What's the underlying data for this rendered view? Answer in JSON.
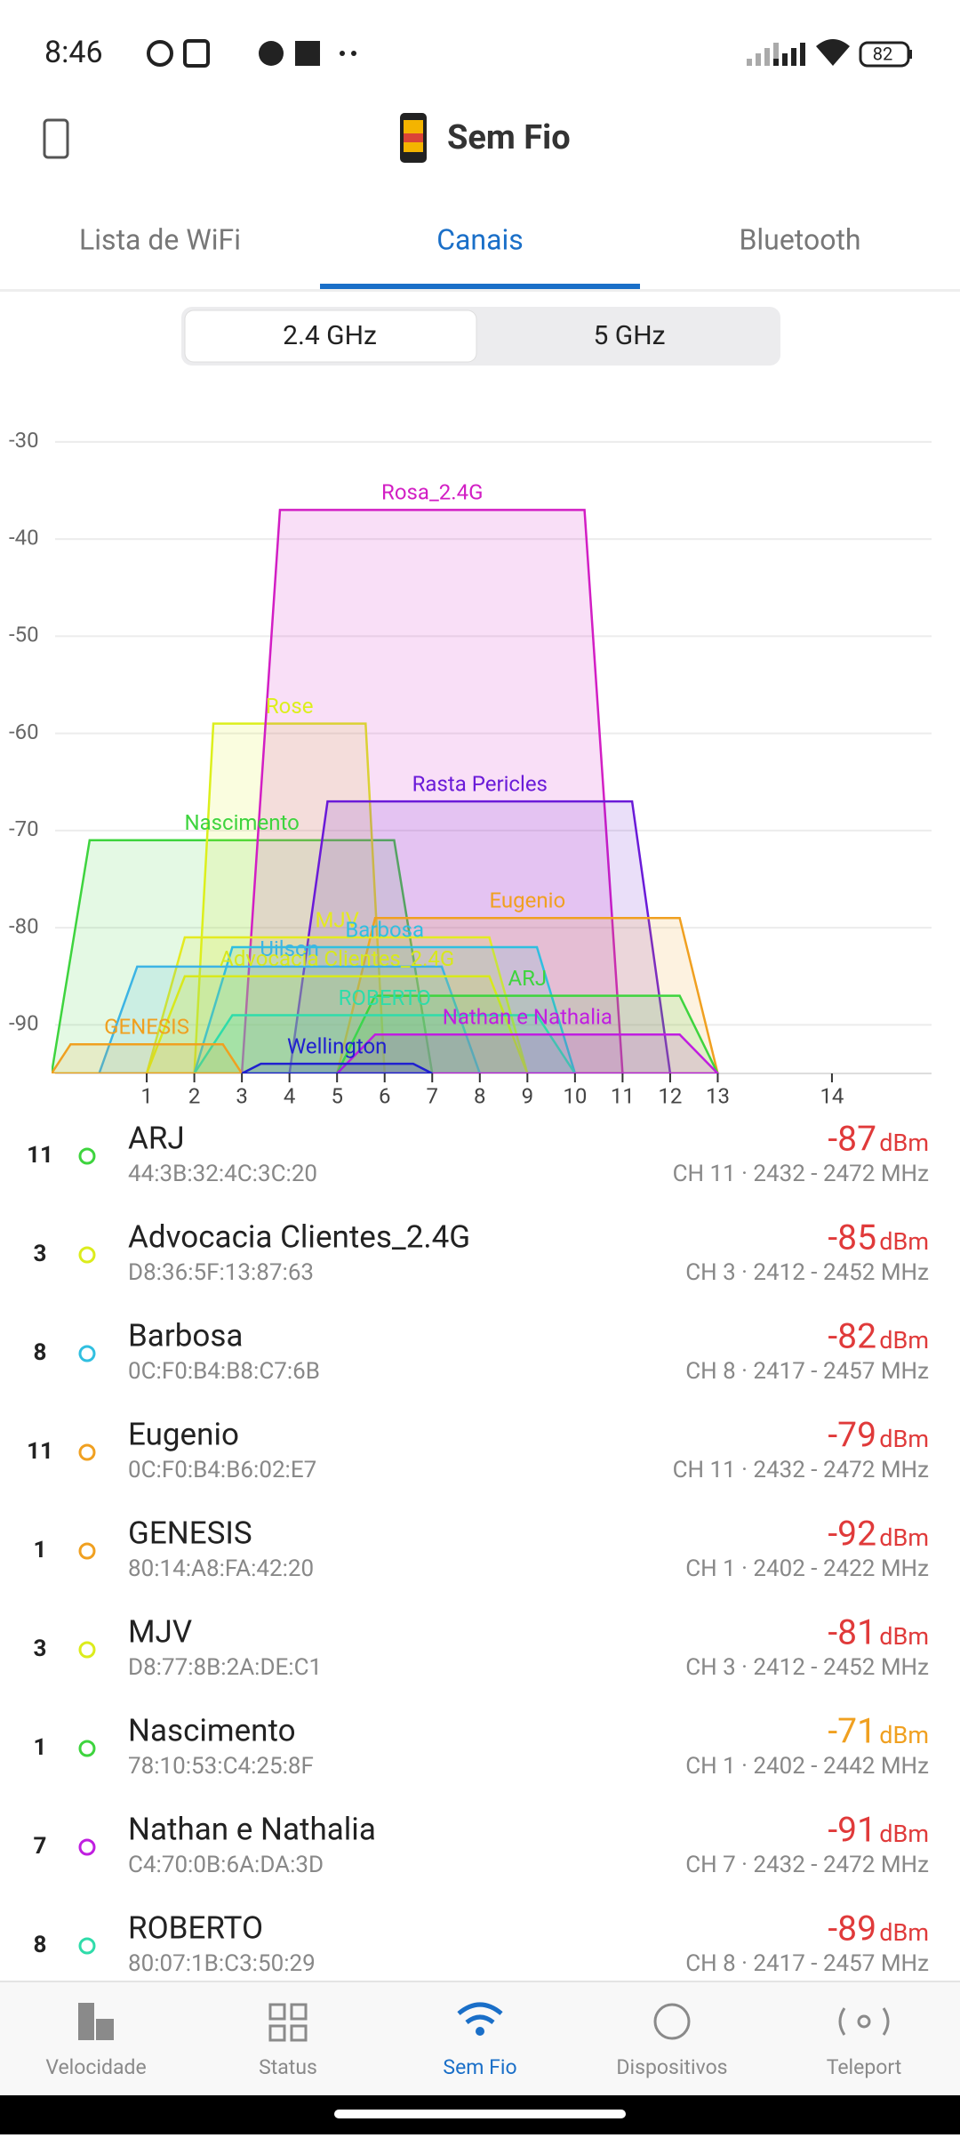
{
  "status_bar": {
    "time": "8:46",
    "battery": "82"
  },
  "header": {
    "title": "Sem Fio"
  },
  "tabs": [
    "Lista de WiFi",
    "Canais",
    "Bluetooth"
  ],
  "band_toggle": [
    "2.4 GHz",
    "5 GHz"
  ],
  "chart_data": {
    "type": "channel",
    "xlim": [
      2402,
      2494
    ],
    "ylim": [
      -95,
      -28
    ],
    "yticks": [
      -30,
      -40,
      -50,
      -60,
      -70,
      -80,
      -90
    ],
    "xticks": [
      {
        "value": 2412,
        "label": "1"
      },
      {
        "value": 2417,
        "label": "2"
      },
      {
        "value": 2422,
        "label": "3"
      },
      {
        "value": 2427,
        "label": "4"
      },
      {
        "value": 2432,
        "label": "5"
      },
      {
        "value": 2437,
        "label": "6"
      },
      {
        "value": 2442,
        "label": "7"
      },
      {
        "value": 2447,
        "label": "8"
      },
      {
        "value": 2452,
        "label": "9"
      },
      {
        "value": 2457,
        "label": "10"
      },
      {
        "value": 2462,
        "label": "11"
      },
      {
        "value": 2467,
        "label": "12"
      },
      {
        "value": 2472,
        "label": "13"
      },
      {
        "value": 2484,
        "label": "14"
      }
    ],
    "grid": true,
    "series": [
      {
        "name": "Nascimento",
        "color": "#3ed43e",
        "value": -71,
        "freq": [
          2402,
          2442
        ]
      },
      {
        "name": "Rose",
        "color": "#dcef1c",
        "value": -59,
        "freq": [
          2417,
          2437
        ]
      },
      {
        "name": "Rosa_2.4G",
        "color": "#d21ec4",
        "value": -37,
        "freq": [
          2422,
          2462
        ]
      },
      {
        "name": "Rasta Pericles",
        "color": "#6a1ad8",
        "value": -67,
        "freq": [
          2427,
          2467
        ]
      },
      {
        "name": "Eugenio",
        "color": "#f0a020",
        "value": -79,
        "freq": [
          2432,
          2472
        ]
      },
      {
        "name": "MJV",
        "color": "#e4ea20",
        "value": -81,
        "freq": [
          2412,
          2452
        ]
      },
      {
        "name": "Barbosa",
        "color": "#30bfe0",
        "value": -82,
        "freq": [
          2417,
          2457
        ]
      },
      {
        "name": "Uilson",
        "color": "#3cb4e4",
        "value": -84,
        "freq": [
          2407,
          2447
        ]
      },
      {
        "name": "Advocacia Clientes_2.4G",
        "color": "#d8e81c",
        "value": -85,
        "freq": [
          2412,
          2452
        ]
      },
      {
        "name": "ARJ",
        "color": "#3ed43e",
        "value": -87,
        "freq": [
          2432,
          2472
        ]
      },
      {
        "name": "ROBERTO",
        "color": "#2fdcaa",
        "value": -89,
        "freq": [
          2417,
          2457
        ]
      },
      {
        "name": "Nathan e Nathalia",
        "color": "#c01ee0",
        "value": -91,
        "freq": [
          2432,
          2472
        ]
      },
      {
        "name": "GENESIS",
        "color": "#f0a020",
        "value": -92,
        "freq": [
          2402,
          2422
        ]
      },
      {
        "name": "Wellington",
        "color": "#2020d0",
        "value": -94,
        "freq": [
          2422,
          2442
        ]
      }
    ]
  },
  "list": [
    {
      "channel": "11",
      "name": "ARJ",
      "mac": "44:3B:32:4C:3C:20",
      "signal": "-87",
      "unit": "dBm",
      "detail": "CH 11 · 2432 - 2472 MHz",
      "color": "#3ed43e",
      "signal_color": "#e03a3a"
    },
    {
      "channel": "3",
      "name": "Advocacia Clientes_2.4G",
      "mac": "D8:36:5F:13:87:63",
      "signal": "-85",
      "unit": "dBm",
      "detail": "CH 3 · 2412 - 2452 MHz",
      "color": "#dcec1c",
      "signal_color": "#e03a3a"
    },
    {
      "channel": "8",
      "name": "Barbosa",
      "mac": "0C:F0:B4:B8:C7:6B",
      "signal": "-82",
      "unit": "dBm",
      "detail": "CH 8 · 2417 - 2457 MHz",
      "color": "#30bfe0",
      "signal_color": "#e03a3a"
    },
    {
      "channel": "11",
      "name": "Eugenio",
      "mac": "0C:F0:B4:B6:02:E7",
      "signal": "-79",
      "unit": "dBm",
      "detail": "CH 11 · 2432 - 2472 MHz",
      "color": "#f0a020",
      "signal_color": "#e03a3a"
    },
    {
      "channel": "1",
      "name": "GENESIS",
      "mac": "80:14:A8:FA:42:20",
      "signal": "-92",
      "unit": "dBm",
      "detail": "CH 1 · 2402 - 2422 MHz",
      "color": "#f0a020",
      "signal_color": "#e03a3a"
    },
    {
      "channel": "3",
      "name": "MJV",
      "mac": "D8:77:8B:2A:DE:C1",
      "signal": "-81",
      "unit": "dBm",
      "detail": "CH 3 · 2412 - 2452 MHz",
      "color": "#dcec1c",
      "signal_color": "#e03a3a"
    },
    {
      "channel": "1",
      "name": "Nascimento",
      "mac": "78:10:53:C4:25:8F",
      "signal": "-71",
      "unit": "dBm",
      "detail": "CH 1 · 2402 - 2442 MHz",
      "color": "#3ed43e",
      "signal_color": "#f0a020"
    },
    {
      "channel": "7",
      "name": "Nathan e Nathalia",
      "mac": "C4:70:0B:6A:DA:3D",
      "signal": "-91",
      "unit": "dBm",
      "detail": "CH 7 · 2432 - 2472 MHz",
      "color": "#c01ee0",
      "signal_color": "#e03a3a"
    },
    {
      "channel": "8",
      "name": "ROBERTO",
      "mac": "80:07:1B:C3:50:29",
      "signal": "-89",
      "unit": "dBm",
      "detail": "CH 8 · 2417 - 2457 MHz",
      "color": "#2fdcaa",
      "signal_color": "#e03a3a"
    }
  ],
  "nav": [
    "Velocidade",
    "Status",
    "Sem Fio",
    "Dispositivos",
    "Teleport"
  ]
}
